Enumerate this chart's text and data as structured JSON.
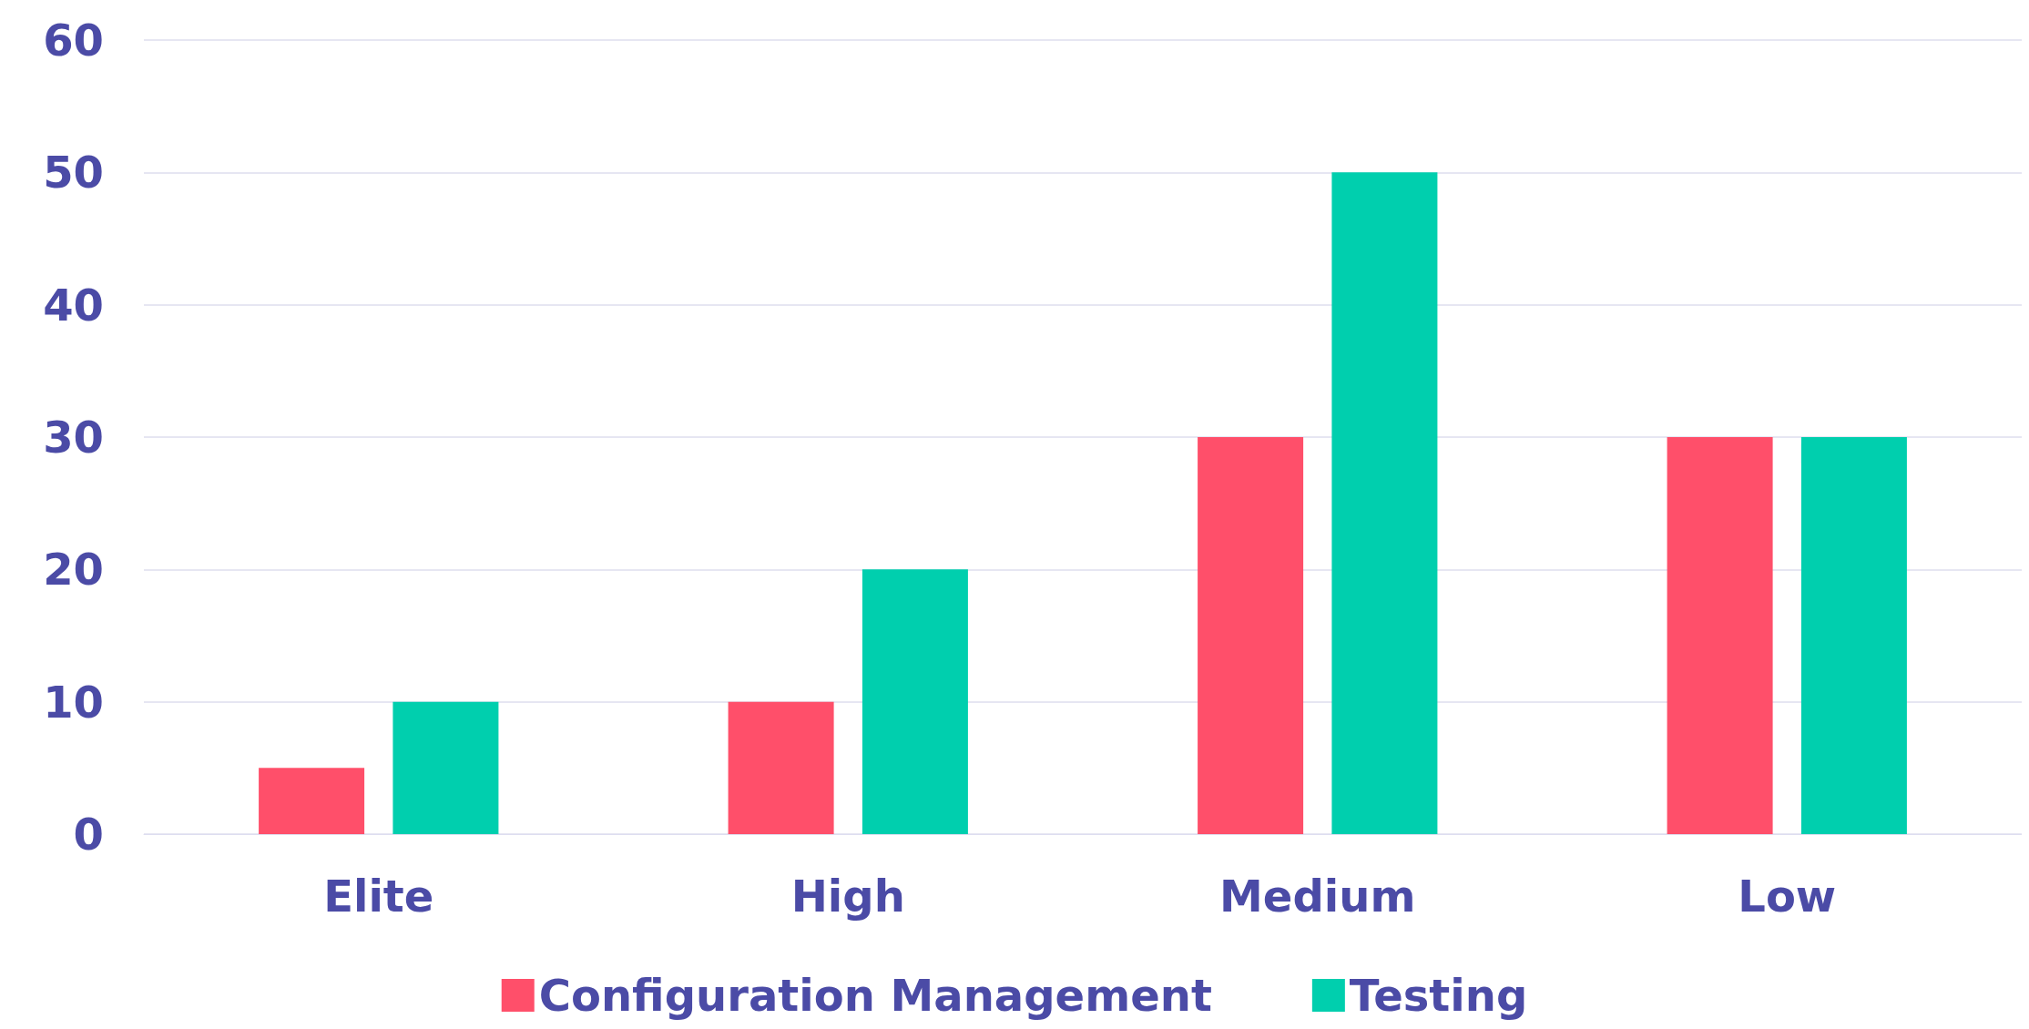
{
  "chart_data": {
    "type": "bar",
    "categories": [
      "Elite",
      "High",
      "Medium",
      "Low"
    ],
    "series": [
      {
        "name": "Configuration Management",
        "color": "#ff4f6a",
        "values": [
          5,
          10,
          30,
          30
        ]
      },
      {
        "name": "Testing",
        "color": "#00cfae",
        "values": [
          10,
          20,
          50,
          30
        ]
      }
    ],
    "ylim": [
      0,
      60
    ],
    "yticks": [
      0,
      10,
      20,
      30,
      40,
      50,
      60
    ],
    "grid": "y",
    "legend": "bottom"
  }
}
